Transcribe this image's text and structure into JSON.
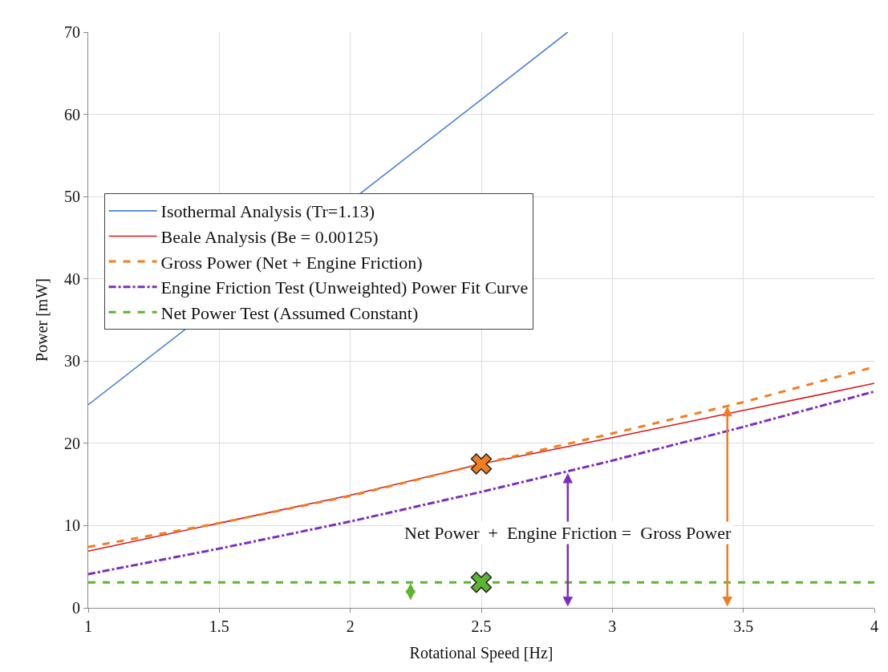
{
  "chart_data": {
    "type": "line",
    "xlabel": "Rotational Speed [Hz]",
    "ylabel": "Power [mW]",
    "xlim": [
      1,
      4
    ],
    "xticks": [
      1,
      1.5,
      2,
      2.5,
      3,
      3.5,
      4
    ],
    "ylim": [
      0,
      70
    ],
    "yticks": [
      0,
      10,
      20,
      30,
      40,
      50,
      60,
      70
    ],
    "grid": true,
    "legend": "top left",
    "marker": "none",
    "series": [
      {
        "name": "Isothermal Analysis (Tr=1.13)",
        "color": "#4a7fd6",
        "x": [
          1,
          2.5,
          2.83
        ],
        "values": [
          24.7,
          61.8,
          70
        ],
        "line_style": "solid"
      },
      {
        "name": "Beale Analysis (Be = 0.00125)",
        "color": "#d7191c",
        "x": [
          1,
          1.5,
          2,
          2.5,
          3,
          3.5,
          4
        ],
        "values": [
          6.9,
          10.3,
          13.7,
          17.5,
          20.7,
          24.0,
          27.3
        ],
        "line_style": "solid"
      },
      {
        "name": "Gross Power (Net + Engine Friction)",
        "color": "#f07d22",
        "x": [
          1,
          1.5,
          2,
          2.5,
          3,
          3.5,
          4
        ],
        "values": [
          7.4,
          10.3,
          13.6,
          17.5,
          21.2,
          25.0,
          29.3
        ],
        "line_style": "dashed"
      },
      {
        "name": "Engine Friction Test (Unweighted) Power Fit Curve",
        "color": "#7b2fbe",
        "x": [
          1,
          1.5,
          2,
          2.5,
          3,
          3.5,
          4
        ],
        "values": [
          4.1,
          7.2,
          10.5,
          14.1,
          17.9,
          22.0,
          26.3
        ],
        "line_style": "dashdot"
      },
      {
        "name": "Net Power Test (Assumed Constant)",
        "color": "#5cb334",
        "x": [
          1,
          4
        ],
        "values": [
          3.1,
          3.1
        ],
        "line_style": "dashed"
      },
      {
        "type": "scatter",
        "marker": "cross",
        "color": "#f07d22",
        "x": [
          2.5
        ],
        "values": [
          17.5
        ]
      },
      {
        "type": "scatter",
        "marker": "cross",
        "color": "#5cb334",
        "x": [
          2.5
        ],
        "values": [
          3.1
        ]
      }
    ],
    "annotations": [
      "Net Power  +  Engine Friction =  Gross Power"
    ]
  }
}
